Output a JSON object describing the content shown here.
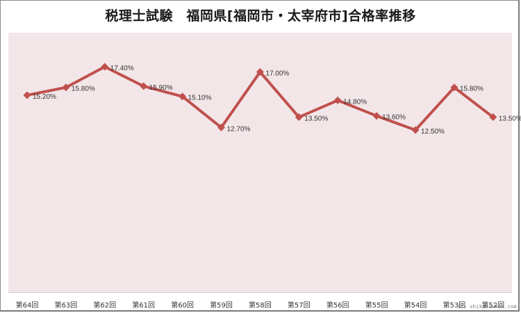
{
  "chart_data": {
    "type": "line",
    "title": "税理士試験　福岡県[福岡市・太宰府市]合格率推移",
    "xlabel": "",
    "ylabel": "",
    "categories": [
      "第64回",
      "第63回",
      "第62回",
      "第61回",
      "第60回",
      "第59回",
      "第58回",
      "第57回",
      "第56回",
      "第55回",
      "第54回",
      "第53回",
      "第52回"
    ],
    "series": [
      {
        "name": "合格率",
        "values": [
          15.2,
          15.8,
          17.4,
          15.9,
          15.1,
          12.7,
          17.0,
          13.5,
          14.8,
          13.6,
          12.5,
          15.8,
          13.5
        ],
        "labels": [
          "15.20%",
          "15.80%",
          "17.40%",
          "15.90%",
          "15.10%",
          "12.70%",
          "17.00%",
          "13.50%",
          "14.80%",
          "13.60%",
          "12.50%",
          "15.80%",
          "13.50%"
        ],
        "color": "#c0504d",
        "marker": "diamond"
      }
    ],
    "grid": false,
    "legend": "none",
    "y_axis_visible": false,
    "plot_background": "#f2e6e8"
  },
  "watermark": "(C) shikakuweek.com"
}
